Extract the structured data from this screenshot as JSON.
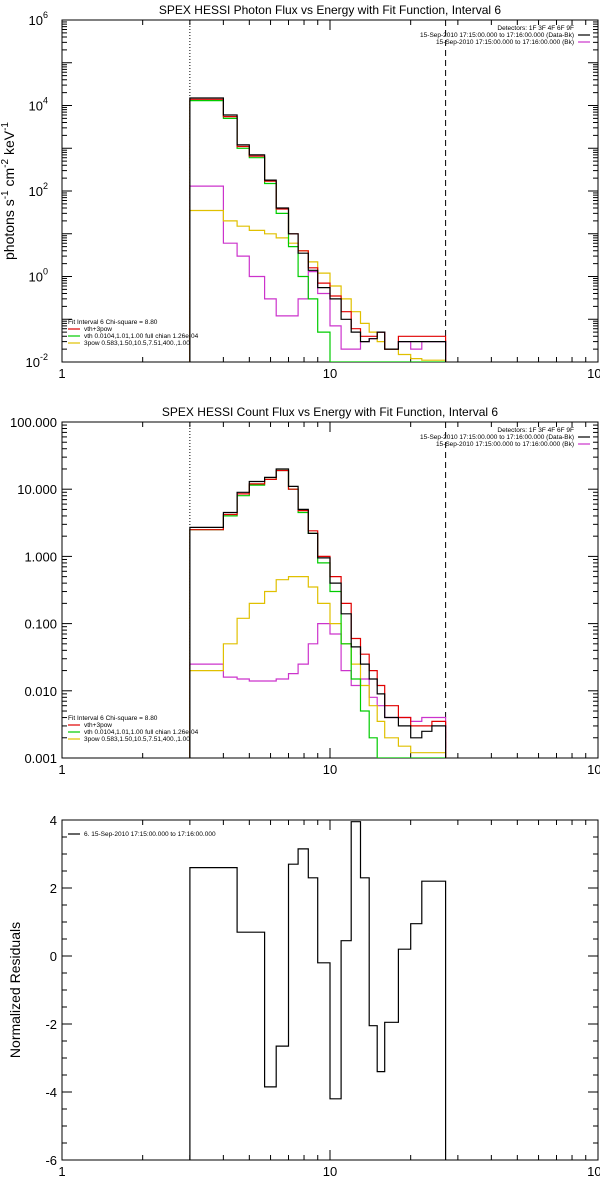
{
  "chart_data": [
    {
      "type": "line",
      "title": "SPEX HESSI Photon Flux vs Energy with Fit Function, Interval 6",
      "ylabel_parts": {
        "a": "photons s",
        "b": "-1",
        "c": " cm",
        "d": "-2",
        "e": " keV",
        "f": "-1"
      },
      "xlabel": "",
      "x_scale": "log",
      "y_scale": "log",
      "xlim": [
        1,
        100
      ],
      "ylim": [
        0.01,
        1000000
      ],
      "x_ticks": [
        {
          "value": 1,
          "label": "1"
        },
        {
          "value": 10,
          "label": "10"
        },
        {
          "value": 100,
          "label": "100"
        }
      ],
      "y_ticks": [
        {
          "value": 0.01,
          "label_base": "10",
          "label_exp": "-2"
        },
        {
          "value": 1,
          "label_base": "10",
          "label_exp": "0"
        },
        {
          "value": 100,
          "label_base": "10",
          "label_exp": "2"
        },
        {
          "value": 10000,
          "label_base": "10",
          "label_exp": "4"
        },
        {
          "value": 1000000,
          "label_base": "10",
          "label_exp": "6"
        }
      ],
      "dotted_line_x": 3,
      "dashed_line_x": 27,
      "info_right": [
        "Detectors: 1F 3F 4F 6F 9F",
        "15-Sep-2010 17:15:00.000 to 17:16:00.000 (Data-Bk)",
        "15-Sep-2010 17:15:00.000 to 17:16:00.000 (Bk)"
      ],
      "info_right_colors": [
        "#000000",
        "#000000",
        "#cc33cc"
      ],
      "legend_left": [
        "Fit Interval 6    Chi-square = 8.80",
        "vth+3pow",
        "vth 0.0104,1.01,1.00  full chian 1.26e-04",
        "3pow 0.583,1.50,10.5,7.51,400.,1.00"
      ],
      "legend_colors": [
        "",
        "#e00000",
        "#00cc00",
        "#e0c000"
      ],
      "edges": [
        3,
        3.5,
        4,
        4.5,
        5,
        5.7,
        6.3,
        7,
        7.6,
        8.3,
        9,
        10,
        11,
        12,
        13,
        14,
        15,
        16,
        18,
        20,
        22,
        24,
        27
      ],
      "series": [
        {
          "color": "#000000",
          "values": [
            15000,
            15000,
            6000,
            1200,
            700,
            180,
            40,
            10,
            3.5,
            1.4,
            0.55,
            0.3,
            0.1,
            0.05,
            0.03,
            0.035,
            0.05,
            0.02,
            0.03,
            0.03,
            0.03,
            0.03
          ]
        },
        {
          "color": "#e00000",
          "values": [
            14000,
            14000,
            5500,
            1100,
            650,
            170,
            38,
            10,
            4,
            1.6,
            0.7,
            0.35,
            0.15,
            0.06,
            0.04,
            0.04,
            0.05,
            0.02,
            0.04,
            0.04,
            0.04,
            0.04
          ]
        },
        {
          "color": "#00cc00",
          "values": [
            13000,
            13000,
            5000,
            1000,
            600,
            150,
            30,
            5,
            1,
            0.3,
            0.05,
            0.01,
            0.01,
            0.01,
            0.01,
            0.01,
            0.01,
            0.01,
            0.01,
            0.01,
            0.01,
            0.01
          ]
        },
        {
          "color": "#e0c000",
          "values": [
            35,
            35,
            20,
            15,
            12,
            10,
            8,
            6,
            4,
            2.2,
            1.2,
            0.6,
            0.3,
            0.15,
            0.08,
            0.05,
            0.03,
            0.02,
            0.015,
            0.012,
            0.011,
            0.011
          ]
        },
        {
          "color": "#cc33cc",
          "values": [
            130,
            130,
            6,
            3,
            1,
            0.3,
            0.12,
            0.12,
            0.3,
            1.3,
            0.4,
            0.07,
            0.02,
            0.02,
            0.03,
            0.035,
            0.05,
            0.02,
            0.03,
            0.02,
            0.03,
            0.03
          ]
        }
      ]
    },
    {
      "type": "line",
      "title": "SPEX HESSI Count Flux vs Energy with Fit Function, Interval 6",
      "ylabel_parts": {},
      "xlabel": "",
      "x_scale": "log",
      "y_scale": "log",
      "xlim": [
        1,
        100
      ],
      "ylim": [
        0.001,
        100
      ],
      "x_ticks": [
        {
          "value": 1,
          "label": "1"
        },
        {
          "value": 10,
          "label": "10"
        },
        {
          "value": 100,
          "label": "100"
        }
      ],
      "y_ticks": [
        {
          "value": 0.001,
          "label": "0.001"
        },
        {
          "value": 0.01,
          "label": "0.010"
        },
        {
          "value": 0.1,
          "label": "0.100"
        },
        {
          "value": 1,
          "label": "1.000"
        },
        {
          "value": 10,
          "label": "10.000"
        },
        {
          "value": 100,
          "label": "100.000"
        }
      ],
      "dotted_line_x": 3,
      "dashed_line_x": 27,
      "info_right": [
        "Detectors: 1F 3F 4F 6F 9F",
        "15-Sep-2010 17:15:00.000 to 17:16:00.000 (Data-Bk)",
        "15-Sep-2010 17:15:00.000 to 17:16:00.000 (Bk)"
      ],
      "info_right_colors": [
        "#000000",
        "#000000",
        "#cc33cc"
      ],
      "legend_left": [
        "Fit Interval 6    Chi-square = 8.80",
        "vth+3pow",
        "vth 0.0104,1.01,1.00  full chian 1.26e-04",
        "3pow 0.583,1.50,10.5,7.51,400.,1.00"
      ],
      "legend_colors": [
        "",
        "#e00000",
        "#00cc00",
        "#e0c000"
      ],
      "edges": [
        3,
        3.5,
        4,
        4.5,
        5,
        5.7,
        6.3,
        7,
        7.6,
        8.3,
        9,
        10,
        11,
        12,
        13,
        14,
        15,
        16,
        18,
        20,
        22,
        24,
        27
      ],
      "series": [
        {
          "color": "#000000",
          "values": [
            2.7,
            2.7,
            4.5,
            9,
            13,
            15,
            20,
            11,
            5,
            2.2,
            0.95,
            0.4,
            0.14,
            0.045,
            0.025,
            0.015,
            0.009,
            0.004,
            0.003,
            0.002,
            0.0025,
            0.003
          ]
        },
        {
          "color": "#e00000",
          "values": [
            2.5,
            2.5,
            4.2,
            8.5,
            12,
            14,
            19,
            10,
            4.8,
            2.4,
            1.0,
            0.5,
            0.2,
            0.06,
            0.035,
            0.02,
            0.012,
            0.006,
            0.004,
            0.003,
            0.003,
            0.0035
          ]
        },
        {
          "color": "#00cc00",
          "values": [
            2.5,
            2.5,
            4.0,
            8,
            11.5,
            14,
            19,
            10,
            4.5,
            2.2,
            0.8,
            0.3,
            0.05,
            0.015,
            0.005,
            0.002,
            0.001,
            0.001,
            0.001,
            0.001,
            0.001,
            0.001
          ]
        },
        {
          "color": "#e0c000",
          "values": [
            0.02,
            0.02,
            0.05,
            0.12,
            0.2,
            0.3,
            0.45,
            0.5,
            0.5,
            0.35,
            0.2,
            0.1,
            0.05,
            0.025,
            0.012,
            0.006,
            0.0035,
            0.002,
            0.0015,
            0.0012,
            0.0012,
            0.0012
          ]
        },
        {
          "color": "#cc33cc",
          "values": [
            0.025,
            0.025,
            0.016,
            0.015,
            0.014,
            0.014,
            0.015,
            0.018,
            0.025,
            0.05,
            0.1,
            0.07,
            0.02,
            0.012,
            0.015,
            0.008,
            0.006,
            0.004,
            0.004,
            0.0035,
            0.004,
            0.004
          ]
        }
      ]
    },
    {
      "type": "line",
      "title": "",
      "ylabel": "Normalized Residuals",
      "xlabel": "",
      "x_scale": "log",
      "y_scale": "linear",
      "xlim": [
        1,
        100
      ],
      "ylim": [
        -6,
        4
      ],
      "x_ticks": [
        {
          "value": 1,
          "label": "1"
        },
        {
          "value": 10,
          "label": "10"
        },
        {
          "value": 100,
          "label": "100"
        }
      ],
      "y_ticks": [
        {
          "value": -6,
          "label": "-6"
        },
        {
          "value": -4,
          "label": "-4"
        },
        {
          "value": -2,
          "label": "-2"
        },
        {
          "value": 0,
          "label": "0"
        },
        {
          "value": 2,
          "label": "2"
        },
        {
          "value": 4,
          "label": "4"
        }
      ],
      "legend_left": [
        "6. 15-Sep-2010 17:15:00.000 to 17:16:00.000"
      ],
      "legend_colors": [
        "#000000"
      ],
      "edges": [
        3,
        3.5,
        4,
        4.5,
        5,
        5.7,
        6.3,
        7,
        7.6,
        8.3,
        9,
        10,
        11,
        12,
        13,
        14,
        15,
        16,
        18,
        20,
        22,
        24,
        27
      ],
      "series": [
        {
          "color": "#000000",
          "values": [
            2.6,
            2.6,
            2.6,
            0.7,
            0.7,
            -3.85,
            -2.65,
            2.7,
            3.15,
            2.3,
            -0.2,
            -4.2,
            0.45,
            3.95,
            2.3,
            -2.05,
            -3.4,
            -1.95,
            0.2,
            0.95,
            2.2,
            2.2
          ]
        }
      ]
    }
  ]
}
